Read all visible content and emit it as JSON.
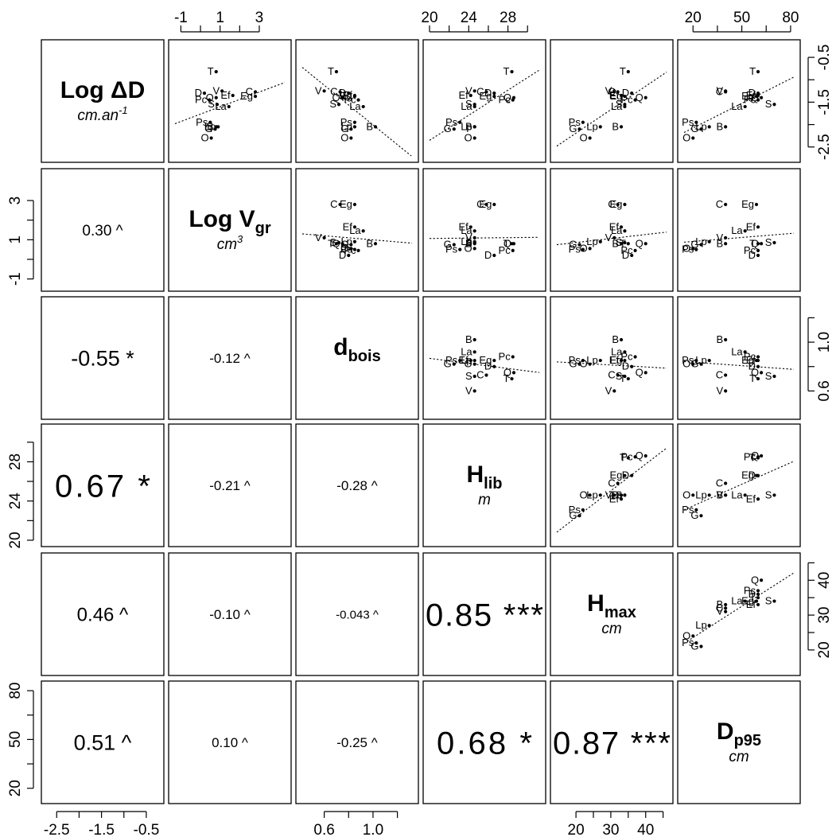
{
  "chart_data": {
    "type": "scatter",
    "layout": "pairs-matrix",
    "variables": [
      {
        "id": "logdD",
        "name_main": "Log ",
        "name_sub": "",
        "name_sym": "ΔD",
        "unit": "cm.an",
        "unit_sup": "-1",
        "ticks": [
          "-2.5",
          "-1.5",
          "-0.5"
        ],
        "range": [
          -2.7,
          -0.25
        ]
      },
      {
        "id": "logvgr",
        "name_main": "Log V",
        "name_sub": "gr",
        "name_sym": "",
        "unit": "cm",
        "unit_sup": "3",
        "ticks": [
          "-1",
          "1",
          "3"
        ],
        "range": [
          -1.3,
          4.3
        ]
      },
      {
        "id": "dbois",
        "name_main": "d",
        "name_sub": "bois",
        "name_sym": "",
        "unit": "",
        "unit_sup": "",
        "ticks": [
          "0.6",
          "1.0"
        ],
        "range": [
          0.42,
          1.32
        ]
      },
      {
        "id": "hlib",
        "name_main": "H",
        "name_sub": "lib",
        "name_sym": "",
        "unit": "m",
        "unit_sup": "",
        "ticks": [
          "20",
          "24",
          "28"
        ],
        "range": [
          20,
          31.2
        ]
      },
      {
        "id": "hmax",
        "name_main": "H",
        "name_sub": "max",
        "name_sym": "",
        "unit": "cm",
        "unit_sup": "",
        "ticks": [
          "20",
          "30",
          "40"
        ],
        "range": [
          14.5,
          46
        ]
      },
      {
        "id": "dp95",
        "name_main": "D",
        "name_sub": "p95",
        "name_sym": "",
        "unit": "cm",
        "unit_sup": "",
        "ticks": [
          "20",
          "50",
          "80"
        ],
        "range": [
          14.5,
          82
        ]
      }
    ],
    "axis_ticks": {
      "logdD": [
        "-2.5",
        "-1.5",
        "-0.5"
      ],
      "logdD_minor": [
        "-2.0",
        "-1.0"
      ],
      "logvgr": [
        "-1",
        "1",
        "3"
      ],
      "logvgr_minor": [
        "0",
        "2"
      ],
      "dbois": [
        "0.6",
        "1.0"
      ],
      "dbois_minor": [
        "0.8",
        "1.2"
      ],
      "hlib": [
        "20",
        "24",
        "28"
      ],
      "hlib_minor": [
        "22",
        "26",
        "30"
      ],
      "hmax": [
        "20",
        "30",
        "40"
      ],
      "hmax_minor": [
        "25",
        "35",
        "45"
      ],
      "dp95": [
        "20",
        "50",
        "80"
      ],
      "dp95_minor": [
        "35",
        "65"
      ]
    },
    "axis_ticks_top": {
      "logvgr": [
        "-1",
        "1",
        "3"
      ],
      "hlib": [
        "20",
        "24",
        "28"
      ],
      "dp95": [
        "20",
        "50",
        "80"
      ]
    },
    "labels": [
      "T",
      "V",
      "Ef",
      "C",
      "Eg",
      "D",
      "Pc",
      "Q",
      "S",
      "La",
      "Ps",
      "G",
      "Lp",
      "O",
      "B"
    ],
    "points": [
      {
        "label": "T",
        "logdD": -0.82,
        "logvgr": 0.8,
        "dbois": 0.7,
        "hlib": 28.4,
        "hmax": 35,
        "dp95": 60
      },
      {
        "label": "V",
        "logdD": -1.25,
        "logvgr": 1.1,
        "dbois": 0.6,
        "hlib": 24.6,
        "hmax": 31,
        "dp95": 40
      },
      {
        "label": "Ef",
        "logdD": -1.35,
        "logvgr": 1.65,
        "dbois": 0.85,
        "hlib": 24.2,
        "hmax": 33,
        "dp95": 60
      },
      {
        "label": "C",
        "logdD": -1.27,
        "logvgr": 2.8,
        "dbois": 0.73,
        "hlib": 25.8,
        "hmax": 32,
        "dp95": 40
      },
      {
        "label": "Eg",
        "logdD": -1.37,
        "logvgr": 2.8,
        "dbois": 0.85,
        "hlib": 26.6,
        "hmax": 34,
        "dp95": 59
      },
      {
        "label": "D",
        "logdD": -1.3,
        "logvgr": 0.2,
        "dbois": 0.8,
        "hlib": 26.6,
        "hmax": 36,
        "dp95": 60
      },
      {
        "label": "Pc",
        "logdD": -1.45,
        "logvgr": 0.45,
        "dbois": 0.88,
        "hlib": 28.5,
        "hmax": 37,
        "dp95": 60
      },
      {
        "label": "Q",
        "logdD": -1.4,
        "logvgr": 0.8,
        "dbois": 0.75,
        "hlib": 28.6,
        "hmax": 40,
        "dp95": 62
      },
      {
        "label": "S",
        "logdD": -1.55,
        "logvgr": 0.85,
        "dbois": 0.72,
        "hlib": 24.6,
        "hmax": 34,
        "dp95": 70
      },
      {
        "label": "La",
        "logdD": -1.6,
        "logvgr": 1.45,
        "dbois": 0.92,
        "hlib": 24.6,
        "hmax": 34,
        "dp95": 52
      },
      {
        "label": "Ps",
        "logdD": -1.95,
        "logvgr": 0.5,
        "dbois": 0.85,
        "hlib": 23.1,
        "hmax": 22,
        "dp95": 22
      },
      {
        "label": "G",
        "logdD": -2.1,
        "logvgr": 0.75,
        "dbois": 0.82,
        "hlib": 22.5,
        "hmax": 21,
        "dp95": 25
      },
      {
        "label": "Lp",
        "logdD": -2.05,
        "logvgr": 0.9,
        "dbois": 0.85,
        "hlib": 24.6,
        "hmax": 27,
        "dp95": 30
      },
      {
        "label": "O",
        "logdD": -2.3,
        "logvgr": 0.55,
        "dbois": 0.82,
        "hlib": 24.6,
        "hmax": 24,
        "dp95": 20
      },
      {
        "label": "B",
        "logdD": -2.05,
        "logvgr": 0.8,
        "dbois": 1.02,
        "hlib": 24.6,
        "hmax": 33,
        "dp95": 40
      }
    ],
    "lower_panels": [
      {
        "row": 1,
        "col": 0,
        "text": "0.30 ^",
        "size": 19
      },
      {
        "row": 2,
        "col": 0,
        "text": "-0.55 *",
        "size": 27
      },
      {
        "row": 2,
        "col": 1,
        "text": "-0.12 ^",
        "size": 17
      },
      {
        "row": 3,
        "col": 0,
        "text": "0.67 *",
        "size": 40
      },
      {
        "row": 3,
        "col": 1,
        "text": "-0.21 ^",
        "size": 17
      },
      {
        "row": 3,
        "col": 2,
        "text": "-0.28 ^",
        "size": 17
      },
      {
        "row": 4,
        "col": 0,
        "text": "0.46 ^",
        "size": 24
      },
      {
        "row": 4,
        "col": 1,
        "text": "-0.10 ^",
        "size": 17
      },
      {
        "row": 4,
        "col": 2,
        "text": "-0.043 ^",
        "size": 15
      },
      {
        "row": 4,
        "col": 3,
        "text": "0.85 ***",
        "size": 40
      },
      {
        "row": 5,
        "col": 0,
        "text": "0.51 ^",
        "size": 27
      },
      {
        "row": 5,
        "col": 1,
        "text": "0.10 ^",
        "size": 17
      },
      {
        "row": 5,
        "col": 2,
        "text": "-0.25 ^",
        "size": 17
      },
      {
        "row": 5,
        "col": 3,
        "text": "0.68 *",
        "size": 40
      },
      {
        "row": 5,
        "col": 4,
        "text": "0.87 ***",
        "size": 40
      }
    ],
    "trend_lines": "dotted least-squares line in every upper-triangle panel",
    "grid": false,
    "legend": "none"
  }
}
